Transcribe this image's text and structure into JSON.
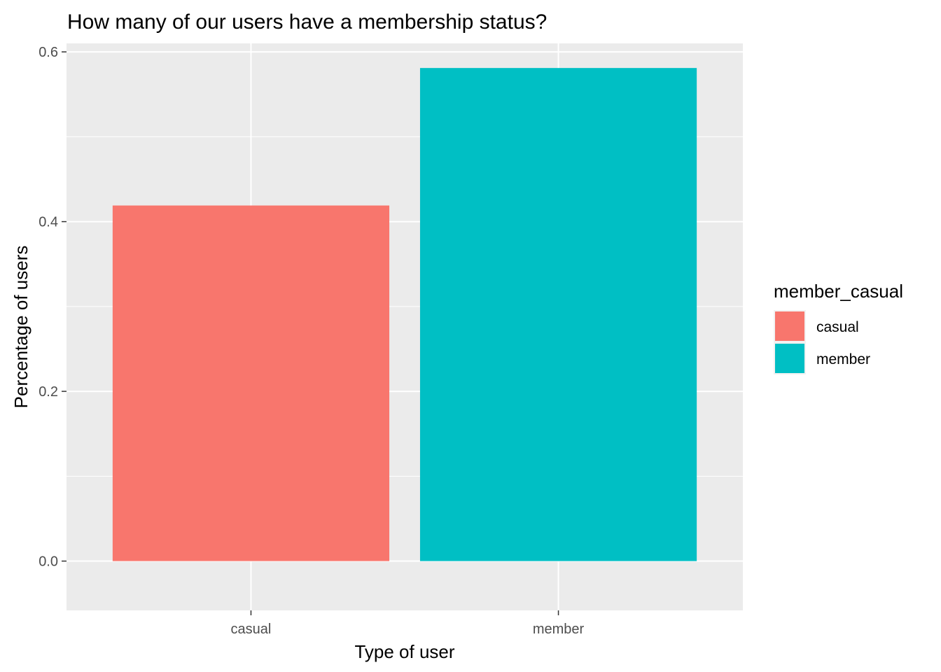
{
  "chart_data": {
    "type": "bar",
    "title": "How many of our users have a membership status?",
    "xlabel": "Type of user",
    "ylabel": "Percentage of users",
    "categories": [
      "casual",
      "member"
    ],
    "values": [
      0.419,
      0.581
    ],
    "colors": [
      "#F8766D",
      "#00BFC4"
    ],
    "ylim": [
      -0.0581,
      0.61
    ],
    "yticks": [
      0.0,
      0.2,
      0.4,
      0.6
    ],
    "ytick_labels": [
      "0.0",
      "0.2",
      "0.4",
      "0.6"
    ],
    "ygrid_minor": [
      0.1,
      0.3,
      0.5
    ],
    "grid": true,
    "panel_background": "#EBEBEB",
    "grid_color": "#FFFFFF",
    "legend": {
      "title": "member_casual",
      "placement": "right",
      "entries": [
        {
          "label": "casual",
          "color": "#F8766D"
        },
        {
          "label": "member",
          "color": "#00BFC4"
        }
      ]
    }
  }
}
